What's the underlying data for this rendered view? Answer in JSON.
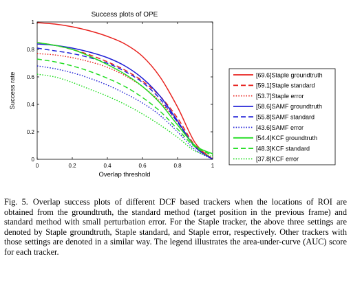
{
  "chart_data": {
    "type": "line",
    "title": "Success plots of OPE",
    "xlabel": "Overlap threshold",
    "ylabel": "Success rate",
    "xlim": [
      0,
      1
    ],
    "ylim": [
      0,
      1
    ],
    "xticks": [
      "0",
      "0.2",
      "0.4",
      "0.6",
      "0.8",
      "1"
    ],
    "yticks": [
      "0",
      "0.2",
      "0.4",
      "0.6",
      "0.8",
      "1"
    ],
    "grid": false,
    "legend_position": "outside-right",
    "x": [
      0,
      0.1,
      0.2,
      0.3,
      0.4,
      0.5,
      0.6,
      0.7,
      0.8,
      0.9,
      1.0
    ],
    "series": [
      {
        "name": "[69.6]Staple groundtruth",
        "color": "#e8231f",
        "dash": "solid",
        "values": [
          0.995,
          0.985,
          0.965,
          0.935,
          0.895,
          0.84,
          0.75,
          0.6,
          0.38,
          0.12,
          0.0
        ]
      },
      {
        "name": "[59.1]Staple standard",
        "color": "#e8231f",
        "dash": "dashed",
        "values": [
          0.85,
          0.83,
          0.8,
          0.76,
          0.71,
          0.65,
          0.57,
          0.46,
          0.3,
          0.1,
          0.0
        ]
      },
      {
        "name": "[53.7]Staple error",
        "color": "#e8231f",
        "dash": "dotted",
        "values": [
          0.77,
          0.76,
          0.74,
          0.71,
          0.67,
          0.61,
          0.53,
          0.42,
          0.27,
          0.09,
          0.0
        ]
      },
      {
        "name": "[58.6]SAMF groundtruth",
        "color": "#1f1fd6",
        "dash": "solid",
        "values": [
          0.84,
          0.83,
          0.81,
          0.78,
          0.74,
          0.68,
          0.59,
          0.46,
          0.28,
          0.09,
          0.0
        ]
      },
      {
        "name": "[55.8]SAMF standard",
        "color": "#1f1fd6",
        "dash": "dashed",
        "values": [
          0.81,
          0.79,
          0.77,
          0.74,
          0.7,
          0.64,
          0.56,
          0.44,
          0.27,
          0.09,
          0.0
        ]
      },
      {
        "name": "[43.6]SAMF error",
        "color": "#1f1fd6",
        "dash": "dotted",
        "values": [
          0.68,
          0.66,
          0.63,
          0.59,
          0.54,
          0.48,
          0.41,
          0.32,
          0.2,
          0.07,
          0.0
        ]
      },
      {
        "name": "[54.4]KCF groundtruth",
        "color": "#22dd22",
        "dash": "solid",
        "values": [
          0.85,
          0.83,
          0.8,
          0.75,
          0.69,
          0.62,
          0.53,
          0.41,
          0.25,
          0.1,
          0.04
        ]
      },
      {
        "name": "[48.3]KCF standard",
        "color": "#22dd22",
        "dash": "dashed",
        "values": [
          0.73,
          0.71,
          0.68,
          0.64,
          0.59,
          0.53,
          0.45,
          0.35,
          0.22,
          0.09,
          0.03
        ]
      },
      {
        "name": "[37.8]KCF error",
        "color": "#22dd22",
        "dash": "dotted",
        "values": [
          0.62,
          0.6,
          0.56,
          0.51,
          0.46,
          0.4,
          0.33,
          0.25,
          0.16,
          0.06,
          0.02
        ]
      }
    ]
  },
  "caption": {
    "label": "Fig. 5.",
    "text": "Overlap success plots of different DCF based trackers when the locations of ROI are obtained from the groundtruth, the standard method (target position in the previous frame) and standard method with small perturbation error. For the Staple tracker, the above three settings are denoted by Staple groundtruth, Staple standard, and Staple error, respectively. Other trackers with those settings are denoted in a similar way. The legend illustrates the area-under-curve (AUC) score for each tracker."
  }
}
